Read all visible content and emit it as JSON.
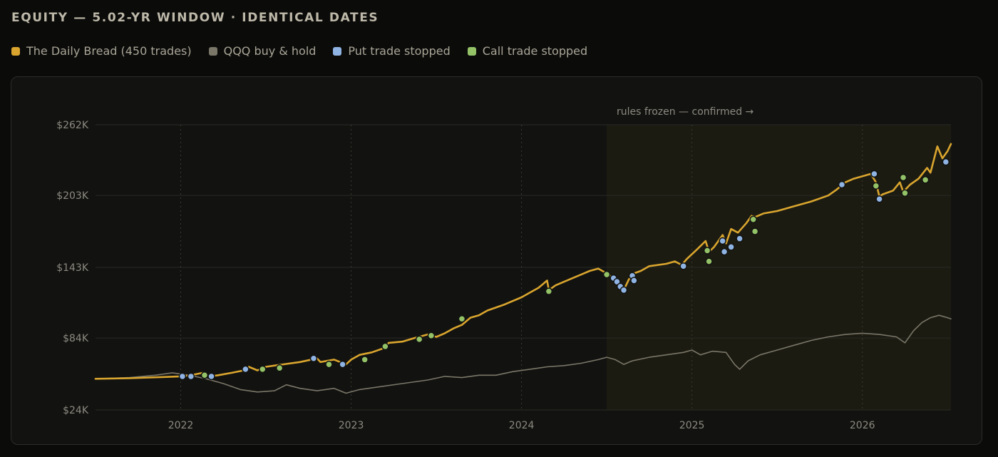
{
  "title": "EQUITY — 5.02-YR WINDOW · IDENTICAL DATES",
  "legend": [
    {
      "label": "The Daily Bread (450 trades)",
      "color": "#d9a52e"
    },
    {
      "label": "QQQ buy & hold",
      "color": "#7a7668"
    },
    {
      "label": "Put trade stopped",
      "color": "#8fb4e3"
    },
    {
      "label": "Call trade stopped",
      "color": "#93c267"
    }
  ],
  "chart_data": {
    "type": "line",
    "xlabel": "",
    "ylabel": "",
    "xlim": [
      2021.5,
      2026.52
    ],
    "ylim": [
      24,
      262
    ],
    "x_ticks": [
      2022,
      2023,
      2024,
      2025,
      2026
    ],
    "x_tick_labels": [
      "2022",
      "2023",
      "2024",
      "2025",
      "2026"
    ],
    "y_ticks": [
      24,
      84,
      143,
      203,
      262
    ],
    "y_tick_labels": [
      "$24K",
      "$84K",
      "$143K",
      "$203K",
      "$262K"
    ],
    "grid": true,
    "legend_position": "top-left",
    "annotation": {
      "text": "rules frozen — confirmed →",
      "start_x": 2024.5
    },
    "series": [
      {
        "name": "The Daily Bread (450 trades)",
        "color": "#d9a52e",
        "points": [
          [
            2021.5,
            50
          ],
          [
            2021.7,
            50.5
          ],
          [
            2021.9,
            51.5
          ],
          [
            2022.0,
            52
          ],
          [
            2022.06,
            53
          ],
          [
            2022.13,
            55
          ],
          [
            2022.17,
            52
          ],
          [
            2022.22,
            53
          ],
          [
            2022.3,
            55
          ],
          [
            2022.37,
            57
          ],
          [
            2022.4,
            60
          ],
          [
            2022.45,
            57
          ],
          [
            2022.5,
            60
          ],
          [
            2022.6,
            62
          ],
          [
            2022.7,
            64
          ],
          [
            2022.8,
            67
          ],
          [
            2022.82,
            64
          ],
          [
            2022.9,
            66
          ],
          [
            2022.97,
            62
          ],
          [
            2023.0,
            66
          ],
          [
            2023.05,
            70
          ],
          [
            2023.12,
            72
          ],
          [
            2023.2,
            76
          ],
          [
            2023.22,
            80
          ],
          [
            2023.3,
            81
          ],
          [
            2023.37,
            84
          ],
          [
            2023.45,
            87
          ],
          [
            2023.5,
            85
          ],
          [
            2023.55,
            88
          ],
          [
            2023.6,
            92
          ],
          [
            2023.65,
            95
          ],
          [
            2023.7,
            101
          ],
          [
            2023.75,
            103
          ],
          [
            2023.8,
            107
          ],
          [
            2023.9,
            112
          ],
          [
            2024.0,
            118
          ],
          [
            2024.05,
            122
          ],
          [
            2024.1,
            126
          ],
          [
            2024.15,
            132
          ],
          [
            2024.16,
            124
          ],
          [
            2024.2,
            128
          ],
          [
            2024.3,
            134
          ],
          [
            2024.35,
            137
          ],
          [
            2024.4,
            140
          ],
          [
            2024.45,
            142
          ],
          [
            2024.5,
            138
          ],
          [
            2024.54,
            134
          ],
          [
            2024.56,
            131
          ],
          [
            2024.58,
            127
          ],
          [
            2024.6,
            124
          ],
          [
            2024.63,
            133
          ],
          [
            2024.66,
            138
          ],
          [
            2024.7,
            140
          ],
          [
            2024.75,
            144
          ],
          [
            2024.85,
            146
          ],
          [
            2024.9,
            148
          ],
          [
            2024.94,
            145
          ],
          [
            2024.97,
            150
          ],
          [
            2025.03,
            158
          ],
          [
            2025.08,
            165
          ],
          [
            2025.1,
            156
          ],
          [
            2025.13,
            160
          ],
          [
            2025.18,
            170
          ],
          [
            2025.2,
            163
          ],
          [
            2025.23,
            175
          ],
          [
            2025.27,
            172
          ],
          [
            2025.32,
            180
          ],
          [
            2025.35,
            186
          ],
          [
            2025.37,
            185
          ],
          [
            2025.42,
            188
          ],
          [
            2025.5,
            190
          ],
          [
            2025.6,
            194
          ],
          [
            2025.7,
            198
          ],
          [
            2025.8,
            203
          ],
          [
            2025.85,
            208
          ],
          [
            2025.9,
            214
          ],
          [
            2025.95,
            217
          ],
          [
            2026.0,
            219
          ],
          [
            2026.05,
            221
          ],
          [
            2026.08,
            214
          ],
          [
            2026.1,
            202
          ],
          [
            2026.12,
            204
          ],
          [
            2026.18,
            207
          ],
          [
            2026.22,
            214
          ],
          [
            2026.24,
            206
          ],
          [
            2026.28,
            212
          ],
          [
            2026.33,
            217
          ],
          [
            2026.38,
            226
          ],
          [
            2026.4,
            222
          ],
          [
            2026.44,
            244
          ],
          [
            2026.47,
            234
          ],
          [
            2026.5,
            240
          ],
          [
            2026.52,
            246
          ]
        ]
      },
      {
        "name": "QQQ buy & hold",
        "color": "#7a7668",
        "points": [
          [
            2021.5,
            50
          ],
          [
            2021.7,
            51
          ],
          [
            2021.85,
            53
          ],
          [
            2021.95,
            55
          ],
          [
            2022.05,
            53
          ],
          [
            2022.15,
            50
          ],
          [
            2022.25,
            46
          ],
          [
            2022.35,
            41
          ],
          [
            2022.45,
            39
          ],
          [
            2022.55,
            40
          ],
          [
            2022.62,
            45
          ],
          [
            2022.7,
            42
          ],
          [
            2022.8,
            40
          ],
          [
            2022.9,
            42
          ],
          [
            2022.97,
            38
          ],
          [
            2023.05,
            41
          ],
          [
            2023.15,
            43
          ],
          [
            2023.3,
            46
          ],
          [
            2023.45,
            49
          ],
          [
            2023.55,
            52
          ],
          [
            2023.65,
            51
          ],
          [
            2023.75,
            53
          ],
          [
            2023.85,
            53
          ],
          [
            2023.95,
            56
          ],
          [
            2024.05,
            58
          ],
          [
            2024.15,
            60
          ],
          [
            2024.25,
            61
          ],
          [
            2024.35,
            63
          ],
          [
            2024.45,
            66
          ],
          [
            2024.5,
            68
          ],
          [
            2024.55,
            66
          ],
          [
            2024.6,
            62
          ],
          [
            2024.65,
            65
          ],
          [
            2024.75,
            68
          ],
          [
            2024.85,
            70
          ],
          [
            2024.95,
            72
          ],
          [
            2025.0,
            74
          ],
          [
            2025.05,
            70
          ],
          [
            2025.12,
            73
          ],
          [
            2025.2,
            72
          ],
          [
            2025.25,
            62
          ],
          [
            2025.28,
            58
          ],
          [
            2025.33,
            65
          ],
          [
            2025.4,
            70
          ],
          [
            2025.5,
            74
          ],
          [
            2025.6,
            78
          ],
          [
            2025.7,
            82
          ],
          [
            2025.8,
            85
          ],
          [
            2025.9,
            87
          ],
          [
            2026.0,
            88
          ],
          [
            2026.1,
            87
          ],
          [
            2026.2,
            85
          ],
          [
            2026.25,
            80
          ],
          [
            2026.3,
            90
          ],
          [
            2026.35,
            97
          ],
          [
            2026.4,
            101
          ],
          [
            2026.45,
            103
          ],
          [
            2026.5,
            101
          ],
          [
            2026.52,
            100
          ]
        ]
      }
    ],
    "markers": {
      "put_stopped": {
        "name": "Put trade stopped",
        "color": "#8fb4e3",
        "points": [
          [
            2022.01,
            52
          ],
          [
            2022.06,
            52
          ],
          [
            2022.18,
            52
          ],
          [
            2022.38,
            58
          ],
          [
            2022.78,
            67
          ],
          [
            2022.95,
            62
          ],
          [
            2024.54,
            134
          ],
          [
            2024.56,
            131
          ],
          [
            2024.58,
            127
          ],
          [
            2024.6,
            124
          ],
          [
            2024.65,
            136
          ],
          [
            2024.66,
            132
          ],
          [
            2024.95,
            144
          ],
          [
            2025.18,
            165
          ],
          [
            2025.19,
            156
          ],
          [
            2025.23,
            160
          ],
          [
            2025.28,
            167
          ],
          [
            2025.88,
            212
          ],
          [
            2026.07,
            221
          ],
          [
            2026.1,
            200
          ],
          [
            2026.49,
            231
          ]
        ]
      },
      "call_stopped": {
        "name": "Call trade stopped",
        "color": "#93c267",
        "points": [
          [
            2022.14,
            53
          ],
          [
            2022.48,
            58
          ],
          [
            2022.58,
            59
          ],
          [
            2022.87,
            62
          ],
          [
            2023.08,
            66
          ],
          [
            2023.2,
            77
          ],
          [
            2023.4,
            83
          ],
          [
            2023.47,
            86
          ],
          [
            2023.65,
            100
          ],
          [
            2024.16,
            123
          ],
          [
            2024.5,
            137
          ],
          [
            2025.09,
            157
          ],
          [
            2025.1,
            148
          ],
          [
            2025.36,
            183
          ],
          [
            2025.37,
            173
          ],
          [
            2026.08,
            211
          ],
          [
            2026.24,
            218
          ],
          [
            2026.25,
            205
          ],
          [
            2026.37,
            216
          ]
        ]
      }
    }
  }
}
